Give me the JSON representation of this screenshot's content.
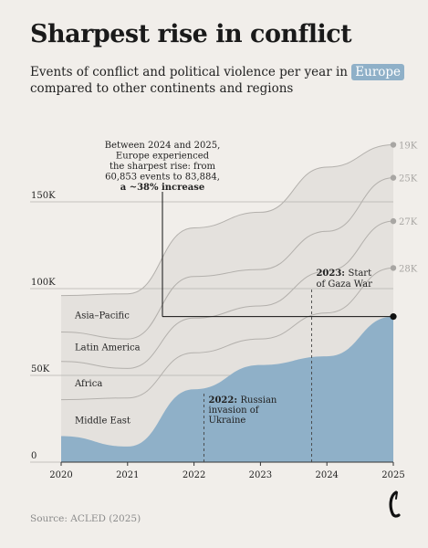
{
  "header": {
    "title": "Sharpest rise in conflict",
    "subtitle_pre": "Events of conflict and political violence per year in",
    "subtitle_highlight": "Europe",
    "subtitle_post": "compared to other continents and regions"
  },
  "footer": {
    "source": "Source: ACLED (2025)"
  },
  "colors": {
    "background": "#f1eeea",
    "europe": "#8fb0c8",
    "stack_fill": "#e4e1dd",
    "band_line": "#b3b0ac",
    "grid": "#b6b3af",
    "right_labels": "#a8a6a3"
  },
  "chart_data": {
    "type": "area",
    "stacked": true,
    "x": [
      2020,
      2021,
      2022,
      2023,
      2024,
      2025
    ],
    "y_ticks": [
      0,
      50000,
      100000,
      150000
    ],
    "y_tick_labels": [
      "0",
      "50K",
      "100K",
      "150K"
    ],
    "ylim": [
      0,
      190000
    ],
    "grid": true,
    "series": [
      {
        "name": "Europe",
        "values": [
          15000,
          9000,
          42000,
          56000,
          61000,
          83884
        ]
      },
      {
        "name": "Middle East",
        "values": [
          21000,
          28000,
          21000,
          15000,
          25000,
          28000
        ]
      },
      {
        "name": "Africa",
        "values": [
          22000,
          17000,
          20000,
          19000,
          24000,
          27000
        ]
      },
      {
        "name": "Latin America",
        "values": [
          17000,
          17000,
          24000,
          21000,
          23000,
          25000
        ]
      },
      {
        "name": "Asia-Pacific",
        "values": [
          21000,
          26000,
          28000,
          33000,
          37000,
          19000
        ]
      }
    ],
    "right_labels": [
      "19K",
      "25K",
      "27K",
      "28K"
    ],
    "left_labels": [
      "Asia–Pacific",
      "Latin America",
      "Africa",
      "Middle East"
    ],
    "annotations": {
      "increase": {
        "lines": [
          "Between 2024 and 2025,",
          "Europe experienced",
          "the sharpest rise: from",
          "60,853 events to 83,884,"
        ],
        "bold_line": "a ~38% increase"
      },
      "russia": {
        "bold": "2022:",
        "lines": [
          "Russian",
          "invasion of",
          "Ukraine"
        ]
      },
      "gaza": {
        "bold": "2023:",
        "lines": [
          "Start",
          "of Gaza War"
        ]
      }
    }
  }
}
